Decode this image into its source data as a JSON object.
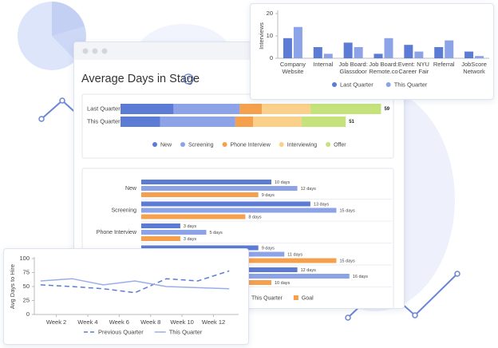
{
  "chart_data": [
    {
      "type": "bar",
      "y_label": "Interviews",
      "categories": [
        "Company Website",
        "Internal",
        "Job Board: Glassdoor",
        "Job Board: Remote.co",
        "Event: NYU Career Fair",
        "Referral",
        "JobScore Network"
      ],
      "series": [
        {
          "name": "Last Quarter",
          "color": "#5b7bd5",
          "values": [
            9,
            5,
            7,
            2,
            6,
            5,
            3
          ]
        },
        {
          "name": "This Quarter",
          "color": "#8ca3e8",
          "values": [
            14,
            2,
            5,
            9,
            3,
            8,
            1
          ]
        }
      ],
      "ylim": [
        0,
        20
      ],
      "yticks": [
        0,
        10,
        20
      ]
    },
    {
      "type": "stacked_bar",
      "title": "Average Days in Stage",
      "categories": [
        "Last Quarter",
        "This Quarter"
      ],
      "series": [
        {
          "name": "New",
          "color": "#5b7bd5",
          "values": [
            12,
            9
          ]
        },
        {
          "name": "Screening",
          "color": "#8ca3e8",
          "values": [
            15,
            17
          ]
        },
        {
          "name": "Phone Interview",
          "color": "#f5a04c",
          "values": [
            5,
            4
          ]
        },
        {
          "name": "Interviewing",
          "color": "#fbd08a",
          "values": [
            11,
            11
          ]
        },
        {
          "name": "Offer",
          "color": "#c6e27a",
          "values": [
            16,
            10
          ]
        }
      ],
      "totals": [
        59,
        51
      ],
      "xlim": [
        0,
        60
      ]
    },
    {
      "type": "hbar",
      "categories": [
        "New",
        "Screening",
        "Phone Interview",
        null,
        null
      ],
      "series": [
        {
          "color": "#5b7bd5",
          "values": [
            10,
            13,
            3,
            9,
            12
          ],
          "value_labels": [
            "10 days",
            "13 days",
            "3 days",
            "9 days",
            "12 days"
          ]
        },
        {
          "name": "This Quarter",
          "color": "#8ca3e8",
          "values": [
            12,
            15,
            5,
            11,
            16
          ],
          "value_labels": [
            "12 days",
            "15 days",
            "5 days",
            "11 days",
            "16 days"
          ]
        },
        {
          "name": "Goal",
          "color": "#f5a04c",
          "values": [
            9,
            8,
            3,
            15,
            10
          ],
          "value_labels": [
            "9 days",
            "8 days",
            "3 days",
            "15 days",
            "10 days"
          ]
        }
      ],
      "xlim": [
        0,
        20
      ]
    },
    {
      "type": "line",
      "y_label": "Avg Days to Hire",
      "x": [
        1,
        3,
        5,
        7,
        9,
        11,
        13
      ],
      "series": [
        {
          "name": "Previous Quarter",
          "color": "#5b7bd5",
          "dashed": true,
          "values": [
            53,
            50,
            46,
            39,
            64,
            60,
            78
          ]
        },
        {
          "name": "This Quarter",
          "color": "#9aaee8",
          "dashed": false,
          "values": [
            60,
            64,
            53,
            60,
            50,
            48,
            46
          ]
        }
      ],
      "xlim": [
        0.6,
        13.6
      ],
      "xticks": [
        {
          "value": 2,
          "label": "Week 2"
        },
        {
          "value": 4,
          "label": "Week 4"
        },
        {
          "value": 6,
          "label": "Week 6"
        },
        {
          "value": 8,
          "label": "Week 8"
        },
        {
          "value": 10,
          "label": "Week 10"
        },
        {
          "value": 12,
          "label": "Week 12"
        }
      ],
      "ylim": [
        0,
        100
      ],
      "yticks": [
        0,
        25,
        50,
        75,
        100
      ]
    }
  ]
}
